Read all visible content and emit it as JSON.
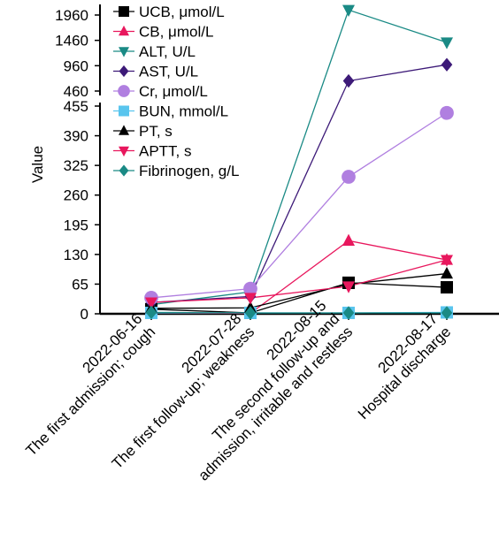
{
  "chart_data": {
    "type": "line",
    "ylabel": "Value",
    "categories": [
      [
        "2022-06-16",
        "The first admission; cough"
      ],
      [
        "2022-07-28",
        "The first follow-up; weakness"
      ],
      [
        "2022-08-15",
        "The second follow-up and",
        "admission, irritable and restless"
      ],
      [
        "2022-08-17",
        "Hospital discharge"
      ]
    ],
    "y_axis_broken": true,
    "y_lower_range": [
      0,
      455
    ],
    "y_lower_ticks": [
      "0",
      "65",
      "130",
      "195",
      "260",
      "325",
      "390",
      "455"
    ],
    "y_upper_range": [
      460,
      2060
    ],
    "y_upper_ticks": [
      "460",
      "960",
      "1460",
      "1960"
    ],
    "grid": false,
    "legend_position": "top-left",
    "series": [
      {
        "name": "UCB, μmol/L",
        "color": "#000000",
        "marker": "square",
        "values": [
          10,
          2,
          68,
          58
        ]
      },
      {
        "name": "CB, μmol/L",
        "color": "#e8175d",
        "marker": "triangle-up",
        "values": [
          2,
          1,
          160,
          118
        ]
      },
      {
        "name": "ALT, U/L",
        "color": "#1a8a85",
        "marker": "triangle-down",
        "values": [
          20,
          48,
          2060,
          1420
        ]
      },
      {
        "name": "AST, U/L",
        "color": "#3d1a78",
        "marker": "diamond",
        "values": [
          25,
          38,
          660,
          980
        ]
      },
      {
        "name": "Cr, μmol/L",
        "color": "#b07fe0",
        "marker": "circle",
        "values": [
          35,
          55,
          300,
          440
        ]
      },
      {
        "name": "BUN, mmol/L",
        "color": "#59c5ee",
        "marker": "square",
        "values": [
          2,
          2,
          2,
          3
        ]
      },
      {
        "name": "PT, s",
        "color": "#000000",
        "marker": "triangle-up",
        "values": [
          12,
          13,
          65,
          88
        ]
      },
      {
        "name": "APTT, s",
        "color": "#e8175d",
        "marker": "triangle-down",
        "values": [
          25,
          35,
          60,
          118
        ]
      },
      {
        "name": "Fibrinogen, g/L",
        "color": "#1a8a85",
        "marker": "diamond",
        "values": [
          3,
          2,
          2,
          2
        ]
      }
    ]
  }
}
